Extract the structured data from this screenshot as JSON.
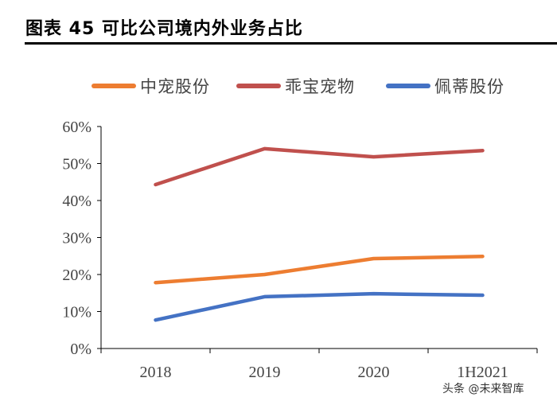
{
  "title": "图表 45  可比公司境内外业务占比",
  "watermark": "头条 @未来智库",
  "chart_data": {
    "type": "line",
    "categories": [
      "2018",
      "2019",
      "2020",
      "1H2021"
    ],
    "series": [
      {
        "name": "中宠股份",
        "color": "#ED7D31",
        "values": [
          17.8,
          20.0,
          24.3,
          24.9
        ]
      },
      {
        "name": "乖宝宠物",
        "color": "#C0504D",
        "values": [
          44.3,
          54.0,
          51.8,
          53.5
        ]
      },
      {
        "name": "佩蒂股份",
        "color": "#4472C4",
        "values": [
          7.7,
          14.0,
          14.8,
          14.4
        ]
      }
    ],
    "yticks": [
      "0%",
      "10%",
      "20%",
      "30%",
      "40%",
      "50%",
      "60%"
    ],
    "ylim": [
      0,
      60
    ],
    "yunit": "%",
    "grid": false,
    "legend": "top"
  }
}
